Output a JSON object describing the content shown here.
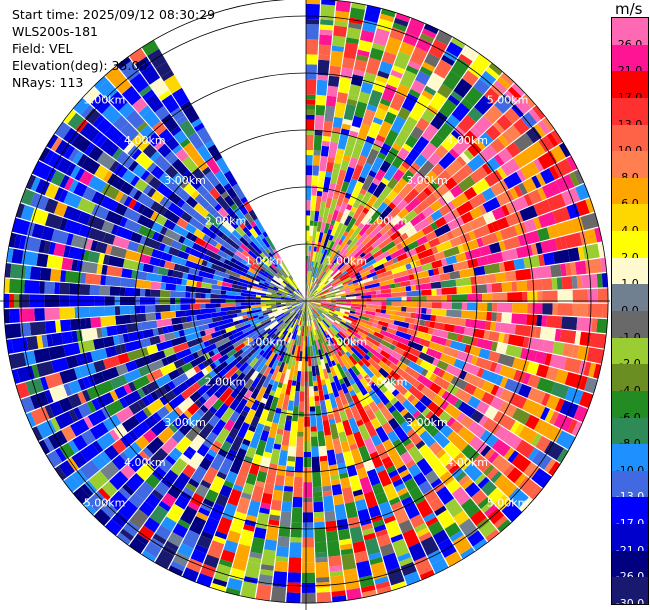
{
  "header": {
    "start_time": "Start time: 2025/09/12 08:30:29",
    "instrument": "WLS200s-181",
    "field": "Field: VEL",
    "elevation": "Elevation(deg): 35.00",
    "nrays": "NRays: 113"
  },
  "colorbar": {
    "unit": "m/s",
    "bins": [
      {
        "label": "26.0",
        "color": "#ff69b4"
      },
      {
        "label": "21.0",
        "color": "#ff1493"
      },
      {
        "label": "17.0",
        "color": "#ff0000"
      },
      {
        "label": "13.0",
        "color": "#ff3030"
      },
      {
        "label": "10.0",
        "color": "#ff6347"
      },
      {
        "label": "8.0",
        "color": "#ff7f50"
      },
      {
        "label": "6.0",
        "color": "#ffa500"
      },
      {
        "label": "4.0",
        "color": "#ffd700"
      },
      {
        "label": "2.0",
        "color": "#ffff00"
      },
      {
        "label": "1.0",
        "color": "#fffacd"
      },
      {
        "label": "0.0",
        "color": "#708090"
      },
      {
        "label": "-1.0",
        "color": "#696969"
      },
      {
        "label": "-2.0",
        "color": "#9acd32"
      },
      {
        "label": "-4.0",
        "color": "#6b8e23"
      },
      {
        "label": "-6.0",
        "color": "#228b22"
      },
      {
        "label": "-8.0",
        "color": "#2e8b57"
      },
      {
        "label": "-10.0",
        "color": "#1e90ff"
      },
      {
        "label": "-13.0",
        "color": "#4169e1"
      },
      {
        "label": "-17.0",
        "color": "#0000ff"
      },
      {
        "label": "-21.0",
        "color": "#0000cd"
      },
      {
        "label": "-26.0",
        "color": "#000080"
      },
      {
        "label": "-30.0",
        "color": "#191970"
      }
    ]
  },
  "chart_data": {
    "type": "heatmap",
    "projection": "polar PPI",
    "field": "VEL",
    "unit": "m/s",
    "elevation_deg": 35.0,
    "n_rays": 113,
    "range_rings_km": [
      1.0,
      2.0,
      3.0,
      4.0,
      5.0
    ],
    "range_ring_labels": [
      "1.00km",
      "2.00km",
      "3.00km",
      "4.00km",
      "5.00km"
    ],
    "max_range_km": 5.3,
    "missing_sector_deg": [
      -30,
      0
    ],
    "grid": true,
    "sector_tendency": [
      {
        "azimuth_deg": [
          0,
          40
        ],
        "tendency": "mixed, mostly positive"
      },
      {
        "azimuth_deg": [
          40,
          130
        ],
        "tendency": "positive (red/orange)"
      },
      {
        "azimuth_deg": [
          130,
          200
        ],
        "tendency": "mixed"
      },
      {
        "azimuth_deg": [
          200,
          330
        ],
        "tendency": "negative (blue)"
      }
    ],
    "colorbar_ticks": [
      26.0,
      21.0,
      17.0,
      13.0,
      10.0,
      8.0,
      6.0,
      4.0,
      2.0,
      1.0,
      0.0,
      -1.0,
      -2.0,
      -4.0,
      -6.0,
      -8.0,
      -10.0,
      -13.0,
      -17.0,
      -21.0,
      -26.0,
      -30.0
    ]
  }
}
